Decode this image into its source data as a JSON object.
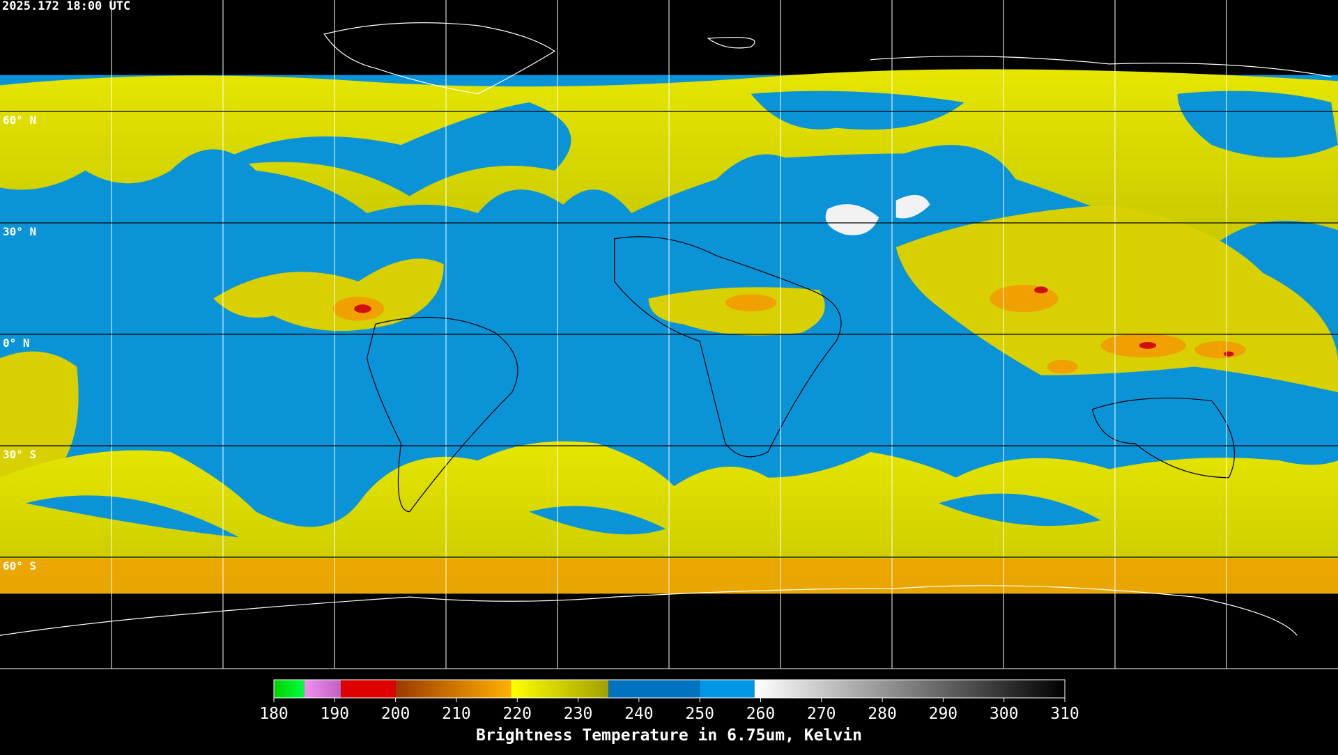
{
  "header": {
    "title": "2025.172 18:00 UTC"
  },
  "map": {
    "latitude_lines": [
      {
        "value": 60,
        "label": "60° N"
      },
      {
        "value": 30,
        "label": "30° N"
      },
      {
        "value": 0,
        "label": "0° N"
      },
      {
        "value": -30,
        "label": "30° S"
      },
      {
        "value": -60,
        "label": "60° S"
      }
    ]
  },
  "colorbar": {
    "range": [
      180,
      310
    ],
    "ticks": [
      180,
      190,
      200,
      210,
      220,
      230,
      240,
      250,
      260,
      270,
      280,
      290,
      300,
      310
    ],
    "segments": [
      {
        "from": 180,
        "to": 185,
        "colors": [
          "#00d000",
          "#00ff40"
        ]
      },
      {
        "from": 185,
        "to": 191,
        "colors": [
          "#f090f0",
          "#c060c0"
        ]
      },
      {
        "from": 191,
        "to": 200,
        "colors": [
          "#e00000",
          "#e00000"
        ]
      },
      {
        "from": 200,
        "to": 219,
        "colors": [
          "#9a3a00",
          "#ffb000"
        ]
      },
      {
        "from": 219,
        "to": 235,
        "colors": [
          "#ffff00",
          "#a0a000"
        ]
      },
      {
        "from": 235,
        "to": 250,
        "colors": [
          "#0072c0",
          "#0072c0"
        ]
      },
      {
        "from": 250,
        "to": 259,
        "colors": [
          "#0096e6",
          "#0096e6"
        ]
      },
      {
        "from": 259,
        "to": 310,
        "colors": [
          "#ffffff",
          "#000000"
        ]
      }
    ],
    "label": "Brightness Temperature in 6.75um, Kelvin"
  }
}
